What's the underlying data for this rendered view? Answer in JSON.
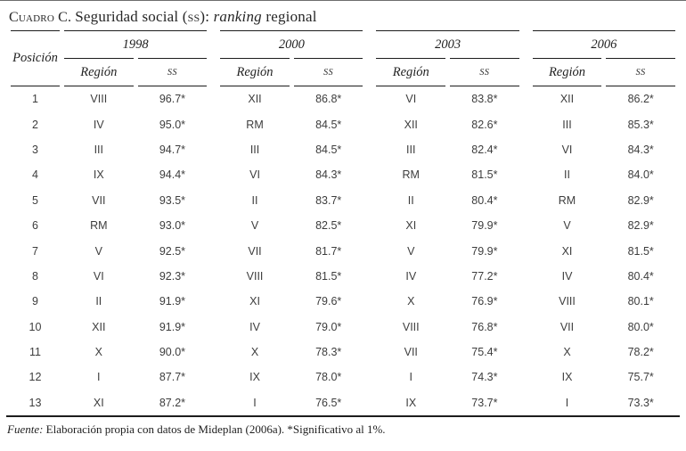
{
  "title": {
    "prefix": "Cuadro C.",
    "part1": "Seguridad social (",
    "ss_smallcaps": "ss",
    "part2": "): ",
    "ranking_italic": "ranking",
    "part3": " regional"
  },
  "table": {
    "col_posicion": "Posición",
    "col_region": "Región",
    "col_ss": "ss",
    "years": [
      "1998",
      "2000",
      "2003",
      "2006"
    ],
    "rows": [
      {
        "pos": "1",
        "groups": [
          {
            "region": "VIII",
            "ss": "96.7*"
          },
          {
            "region": "XII",
            "ss": "86.8*"
          },
          {
            "region": "VI",
            "ss": "83.8*"
          },
          {
            "region": "XII",
            "ss": "86.2*"
          }
        ]
      },
      {
        "pos": "2",
        "groups": [
          {
            "region": "IV",
            "ss": "95.0*"
          },
          {
            "region": "RM",
            "ss": "84.5*"
          },
          {
            "region": "XII",
            "ss": "82.6*"
          },
          {
            "region": "III",
            "ss": "85.3*"
          }
        ]
      },
      {
        "pos": "3",
        "groups": [
          {
            "region": "III",
            "ss": "94.7*"
          },
          {
            "region": "III",
            "ss": "84.5*"
          },
          {
            "region": "III",
            "ss": "82.4*"
          },
          {
            "region": "VI",
            "ss": "84.3*"
          }
        ]
      },
      {
        "pos": "4",
        "groups": [
          {
            "region": "IX",
            "ss": "94.4*"
          },
          {
            "region": "VI",
            "ss": "84.3*"
          },
          {
            "region": "RM",
            "ss": "81.5*"
          },
          {
            "region": "II",
            "ss": "84.0*"
          }
        ]
      },
      {
        "pos": "5",
        "groups": [
          {
            "region": "VII",
            "ss": "93.5*"
          },
          {
            "region": "II",
            "ss": "83.7*"
          },
          {
            "region": "II",
            "ss": "80.4*"
          },
          {
            "region": "RM",
            "ss": "82.9*"
          }
        ]
      },
      {
        "pos": "6",
        "groups": [
          {
            "region": "RM",
            "ss": "93.0*"
          },
          {
            "region": "V",
            "ss": "82.5*"
          },
          {
            "region": "XI",
            "ss": "79.9*"
          },
          {
            "region": "V",
            "ss": "82.9*"
          }
        ]
      },
      {
        "pos": "7",
        "groups": [
          {
            "region": "V",
            "ss": "92.5*"
          },
          {
            "region": "VII",
            "ss": "81.7*"
          },
          {
            "region": "V",
            "ss": "79.9*"
          },
          {
            "region": "XI",
            "ss": "81.5*"
          }
        ]
      },
      {
        "pos": "8",
        "groups": [
          {
            "region": "VI",
            "ss": "92.3*"
          },
          {
            "region": "VIII",
            "ss": "81.5*"
          },
          {
            "region": "IV",
            "ss": "77.2*"
          },
          {
            "region": "IV",
            "ss": "80.4*"
          }
        ]
      },
      {
        "pos": "9",
        "groups": [
          {
            "region": "II",
            "ss": "91.9*"
          },
          {
            "region": "XI",
            "ss": "79.6*"
          },
          {
            "region": "X",
            "ss": "76.9*"
          },
          {
            "region": "VIII",
            "ss": "80.1*"
          }
        ]
      },
      {
        "pos": "10",
        "groups": [
          {
            "region": "XII",
            "ss": "91.9*"
          },
          {
            "region": "IV",
            "ss": "79.0*"
          },
          {
            "region": "VIII",
            "ss": "76.8*"
          },
          {
            "region": "VII",
            "ss": "80.0*"
          }
        ]
      },
      {
        "pos": "11",
        "groups": [
          {
            "region": "X",
            "ss": "90.0*"
          },
          {
            "region": "X",
            "ss": "78.3*"
          },
          {
            "region": "VII",
            "ss": "75.4*"
          },
          {
            "region": "X",
            "ss": "78.2*"
          }
        ]
      },
      {
        "pos": "12",
        "groups": [
          {
            "region": "I",
            "ss": "87.7*"
          },
          {
            "region": "IX",
            "ss": "78.0*"
          },
          {
            "region": "I",
            "ss": "74.3*"
          },
          {
            "region": "IX",
            "ss": "75.7*"
          }
        ]
      },
      {
        "pos": "13",
        "groups": [
          {
            "region": "XI",
            "ss": "87.2*"
          },
          {
            "region": "I",
            "ss": "76.5*"
          },
          {
            "region": "IX",
            "ss": "73.7*"
          },
          {
            "region": "I",
            "ss": "73.3*"
          }
        ]
      }
    ]
  },
  "footer": {
    "label": "Fuente:",
    "text": " Elaboración propia con datos de Mideplan (2006a). *Significativo al 1%."
  },
  "colors": {
    "rule": "#1c1c1c",
    "heading_text": "#1f1f1f",
    "data_text": "#3d3d3d"
  }
}
